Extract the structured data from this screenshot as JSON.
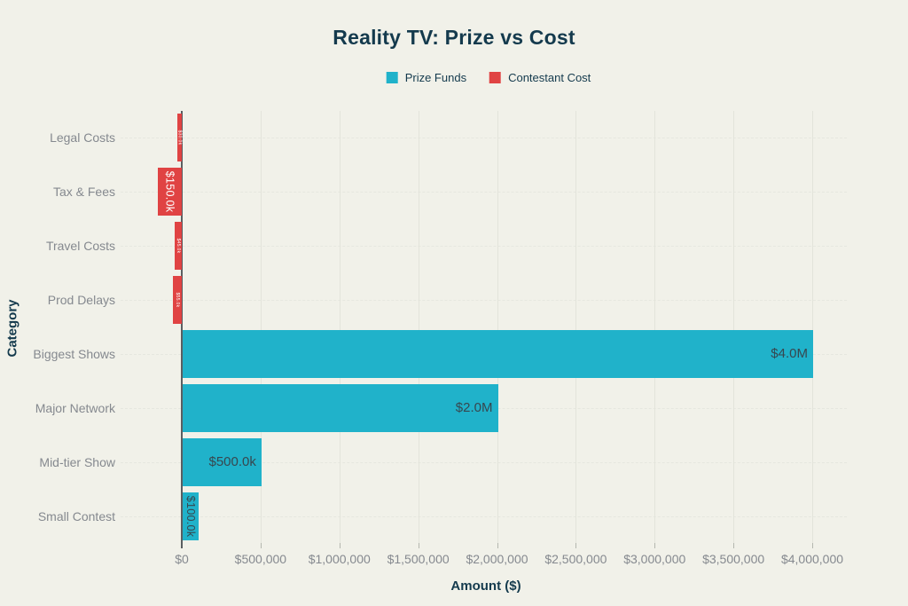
{
  "chart_data": {
    "type": "bar",
    "orientation": "horizontal",
    "title": "Reality TV: Prize vs Cost",
    "xlabel": "Amount ($)",
    "ylabel": "Category",
    "categories": [
      "Legal Costs",
      "Tax & Fees",
      "Travel Costs",
      "Prod Delays",
      "Biggest Shows",
      "Major Network",
      "Mid-tier Show",
      "Small Contest"
    ],
    "series": [
      {
        "name": "Prize Funds",
        "color": "#20b2ca",
        "values": [
          0,
          0,
          0,
          0,
          4000000,
          2000000,
          500000,
          100000
        ],
        "bar_labels": [
          "",
          "",
          "",
          "",
          "$4.0M",
          "$2.0M",
          "$500.0k",
          "$100.0k"
        ]
      },
      {
        "name": "Contestant Cost",
        "color": "#e04343",
        "direction": "left-of-zero",
        "values": [
          30000,
          150000,
          45000,
          55000,
          0,
          0,
          0,
          0
        ],
        "bar_labels": [
          "$30.0k",
          "$150.0k",
          "$45.0k",
          "$55.0k",
          "",
          "",
          "",
          ""
        ]
      }
    ],
    "xlim": [
      0,
      4000000
    ],
    "xticks": [
      "$0",
      "$500,000",
      "$1,000,000",
      "$1,500,000",
      "$2,000,000",
      "$2,500,000",
      "$3,000,000",
      "$3,500,000",
      "$4,000,000"
    ],
    "grid": true,
    "legend_position": "top-center",
    "colors": {
      "background": "#f1f1e9",
      "title_text": "#143a4d",
      "tick_text": "#85898f",
      "axis_line": "#5a5e61",
      "label_on_teal": "#37474f",
      "label_on_red": "#ffffff"
    }
  }
}
